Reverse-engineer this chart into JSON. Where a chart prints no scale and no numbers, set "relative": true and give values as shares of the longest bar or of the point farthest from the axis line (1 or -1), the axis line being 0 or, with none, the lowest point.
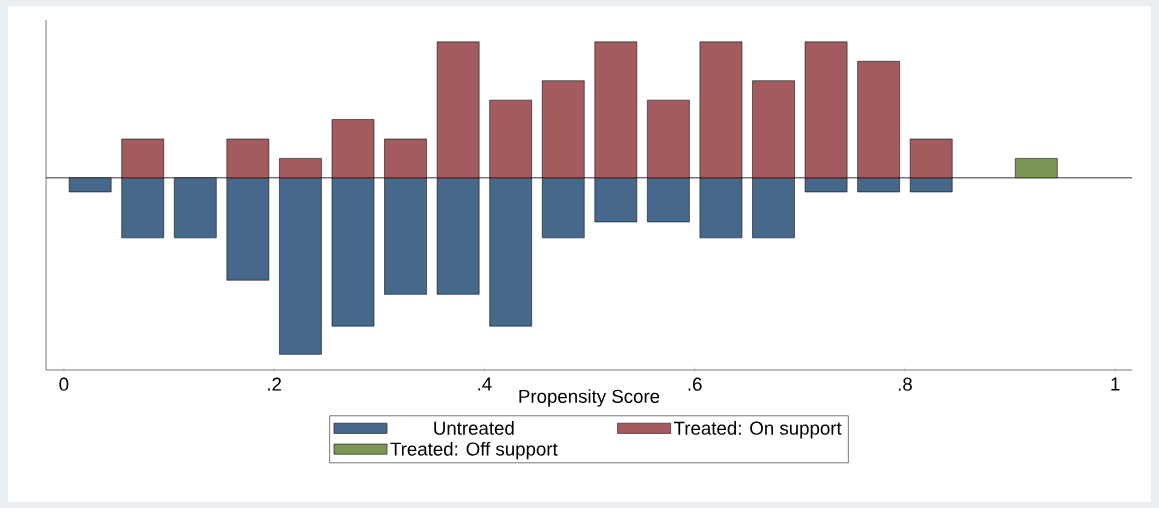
{
  "chart_data": {
    "type": "bar",
    "relative": true,
    "xlabel": "Propensity Score",
    "legend": "bottom",
    "xlim": [
      -0.017,
      1.016
    ],
    "xticks": [
      0,
      {
        "value": 0.2,
        "label": ".2"
      },
      {
        "value": 0.4,
        "label": ".4"
      },
      {
        "value": 0.6,
        "label": ".6"
      },
      {
        "value": 0.8,
        "label": ".8"
      },
      1
    ],
    "series": [
      {
        "name": "Untreated",
        "color": "#46698b",
        "x": [
          0.025,
          0.075,
          0.125,
          0.175,
          0.225,
          0.275,
          0.325,
          0.375,
          0.425,
          0.475,
          0.525,
          0.575,
          0.625,
          0.675,
          0.725,
          0.775,
          0.825
        ],
        "values": [
          -0.08,
          -0.34,
          -0.34,
          -0.58,
          -1,
          -0.84,
          -0.66,
          -0.66,
          -0.84,
          -0.34,
          -0.25,
          -0.25,
          -0.34,
          -0.34,
          -0.08,
          -0.08,
          -0.08
        ]
      },
      {
        "name": "Treated: On support",
        "color": "#a35b5f",
        "x": [
          0.075,
          0.175,
          0.225,
          0.275,
          0.325,
          0.375,
          0.425,
          0.475,
          0.525,
          0.575,
          0.625,
          0.675,
          0.725,
          0.775,
          0.825
        ],
        "values": [
          0.22,
          0.22,
          0.11,
          0.33,
          0.22,
          0.77,
          0.44,
          0.55,
          0.77,
          0.44,
          0.77,
          0.55,
          0.77,
          0.66,
          0.22
        ]
      },
      {
        "name": "Treated: Off support",
        "color": "#7a9656",
        "x": [
          0.925
        ],
        "values": [
          0.11
        ]
      }
    ]
  }
}
